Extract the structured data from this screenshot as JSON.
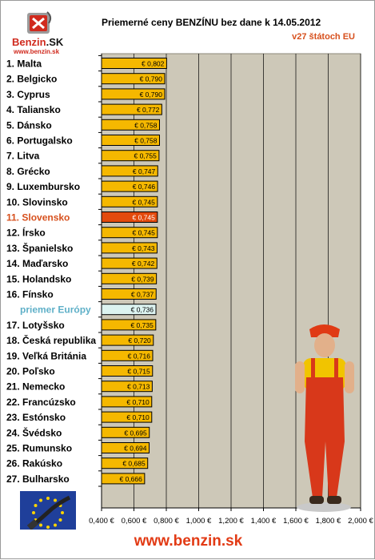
{
  "logo": {
    "brand_red": "Benzin",
    "brand_dark": ".SK",
    "url": "www.benzin.sk"
  },
  "title": "Priemerné ceny BENZÍNU bez dane k 14.05.2012",
  "subtitle": "v27 štátoch EU",
  "footer": "www.benzin.sk",
  "colors": {
    "bar": "#f5b800",
    "highlight_bar": "#e34a0d",
    "average_bar": "#dcf3f0",
    "plot_bg": "#cdc8b8",
    "highlight_text": "#d7501d",
    "average_text": "#5fb0c8"
  },
  "chart_data": {
    "type": "bar",
    "orientation": "horizontal",
    "categories": [
      "1. Malta",
      "2. Belgicko",
      "3. Cyprus",
      "4. Taliansko",
      "5. Dánsko",
      "6. Portugalsko",
      "7. Litva",
      "8. Grécko",
      "9. Luxembursko",
      "10. Slovinsko",
      "11. Slovensko",
      "12. Írsko",
      "13. Španielsko",
      "14. Maďarsko",
      "15. Holandsko",
      "16. Fínsko",
      "priemer Európy",
      "17. Lotyšsko",
      "18. Česká republika",
      "19. Veľká Británia",
      "20. Poľsko",
      "21. Nemecko",
      "22. Francúzsko",
      "23. Estónsko",
      "24. Švédsko",
      "25. Rumunsko",
      "26. Rakúsko",
      "27. Bulharsko"
    ],
    "values": [
      0.802,
      0.79,
      0.79,
      0.772,
      0.758,
      0.758,
      0.755,
      0.747,
      0.746,
      0.745,
      0.745,
      0.745,
      0.743,
      0.742,
      0.739,
      0.737,
      0.736,
      0.735,
      0.72,
      0.716,
      0.715,
      0.713,
      0.71,
      0.71,
      0.695,
      0.694,
      0.685,
      0.666
    ],
    "value_labels": [
      "€ 0,802",
      "€ 0,790",
      "€ 0,790",
      "€ 0,772",
      "€ 0,758",
      "€ 0,758",
      "€ 0,755",
      "€ 0,747",
      "€ 0,746",
      "€ 0,745",
      "€ 0,745",
      "€ 0,745",
      "€ 0,743",
      "€ 0,742",
      "€ 0,739",
      "€ 0,737",
      "€ 0,736",
      "€ 0,735",
      "€ 0,720",
      "€ 0,716",
      "€ 0,715",
      "€ 0,713",
      "€ 0,710",
      "€ 0,710",
      "€ 0,695",
      "€ 0,694",
      "€ 0,685",
      "€ 0,666"
    ],
    "highlight_index": 10,
    "average_index": 16,
    "xlim": [
      0.4,
      2.0
    ],
    "xticks": [
      0.4,
      0.6,
      0.8,
      1.0,
      1.2,
      1.4,
      1.6,
      1.8,
      2.0
    ],
    "xtick_labels": [
      "0,400 €",
      "0,600 €",
      "0,800 €",
      "1,000 €",
      "1,200 €",
      "1,400 €",
      "1,600 €",
      "1,800 €",
      "2,000 €"
    ],
    "grid": true,
    "legend": "none"
  }
}
